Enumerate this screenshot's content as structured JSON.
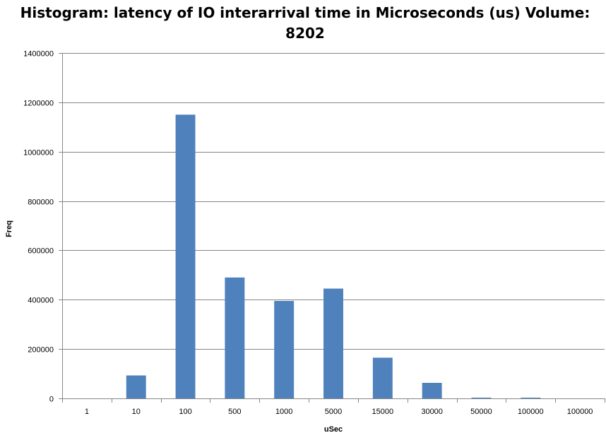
{
  "chart_data": {
    "type": "bar",
    "title_line1": "Histogram: latency of IO interarrival time in Microseconds (us) Volume:",
    "title_line2": "8202",
    "xlabel": "uSec",
    "ylabel": "Freq",
    "categories": [
      "1",
      "10",
      "100",
      "500",
      "1000",
      "5000",
      "15000",
      "30000",
      "50000",
      "100000",
      "100000"
    ],
    "values": [
      0,
      93000,
      1150000,
      490000,
      395000,
      445000,
      165000,
      63000,
      3000,
      3000,
      0
    ],
    "ylim": [
      0,
      1400000
    ],
    "yticks": [
      0,
      200000,
      400000,
      600000,
      800000,
      1000000,
      1200000,
      1400000
    ],
    "grid": true,
    "legend": "none",
    "bar_color": "#4F81BD"
  }
}
